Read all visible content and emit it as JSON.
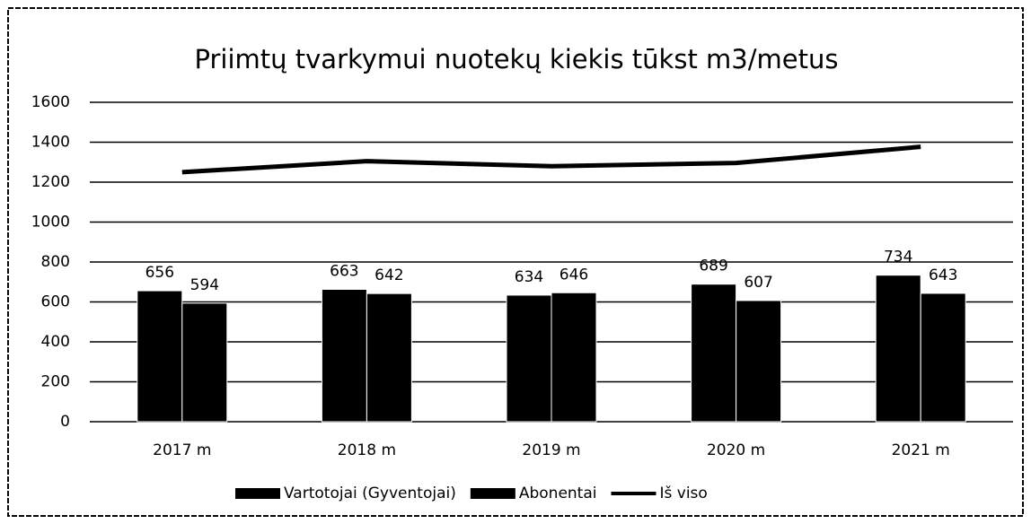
{
  "chart_data": {
    "type": "bar",
    "title": "Priimtų tvarkymui nuotekų kiekis tūkst m3/metus",
    "categories": [
      "2017 m",
      "2018 m",
      "2019 m",
      "2020 m",
      "2021 m"
    ],
    "series": [
      {
        "name": "Vartotojai (Gyventojai)",
        "color": "#000000",
        "values": [
          656,
          663,
          634,
          689,
          734
        ],
        "data_labels": true
      },
      {
        "name": "Abonentai",
        "color": "#000000",
        "values": [
          594,
          642,
          646,
          607,
          643
        ],
        "data_labels": true
      },
      {
        "name": "Iš viso",
        "color": "#000000",
        "type": "line",
        "values": [
          1250,
          1305,
          1280,
          1296,
          1377
        ],
        "data_labels": false
      }
    ],
    "ylim": [
      0,
      1600
    ],
    "yticks": [
      0,
      200,
      400,
      600,
      800,
      1000,
      1200,
      1400,
      1600
    ],
    "grid": true,
    "legend": "bottom"
  }
}
